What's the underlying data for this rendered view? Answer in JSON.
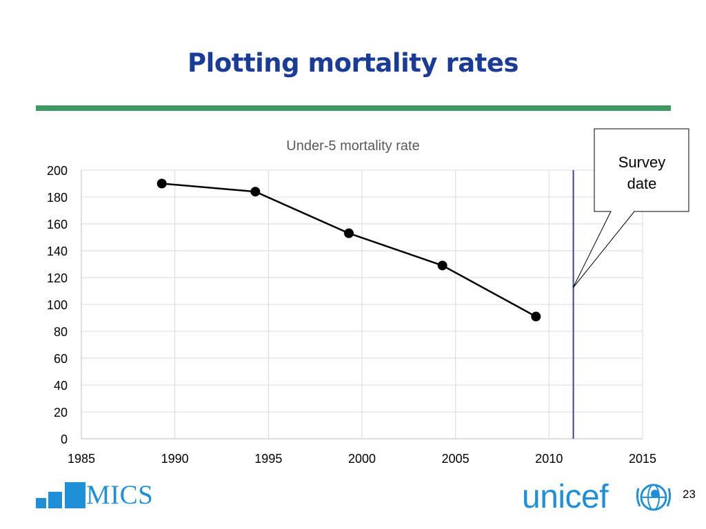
{
  "slide": {
    "title": "Plotting mortality rates",
    "page_number": "23",
    "accent_color": "#3b9a5f",
    "title_color": "#1a3c96"
  },
  "callout": {
    "text_line1": "Survey",
    "text_line2": "date"
  },
  "logos": {
    "mics": "MICS",
    "unicef": "unicef",
    "unicef_emblem_icon": "unicef-globe-icon",
    "brand_color": "#1f8fd8"
  },
  "chart_data": {
    "type": "line",
    "title": "Under-5 mortality rate",
    "xlim": [
      1985,
      2015
    ],
    "ylim": [
      0,
      200
    ],
    "x_ticks": [
      1985,
      1990,
      1995,
      2000,
      2005,
      2010,
      2015
    ],
    "y_ticks": [
      0,
      20,
      40,
      60,
      80,
      100,
      120,
      140,
      160,
      180,
      200
    ],
    "grid": true,
    "series": [
      {
        "color": "#000000",
        "x": [
          1989.3,
          1994.3,
          1999.3,
          2004.3,
          2009.3
        ],
        "y": [
          190,
          184,
          153,
          129,
          91
        ]
      }
    ],
    "reference_line": {
      "x": 2011.3,
      "color": "#3f3f9f"
    }
  }
}
